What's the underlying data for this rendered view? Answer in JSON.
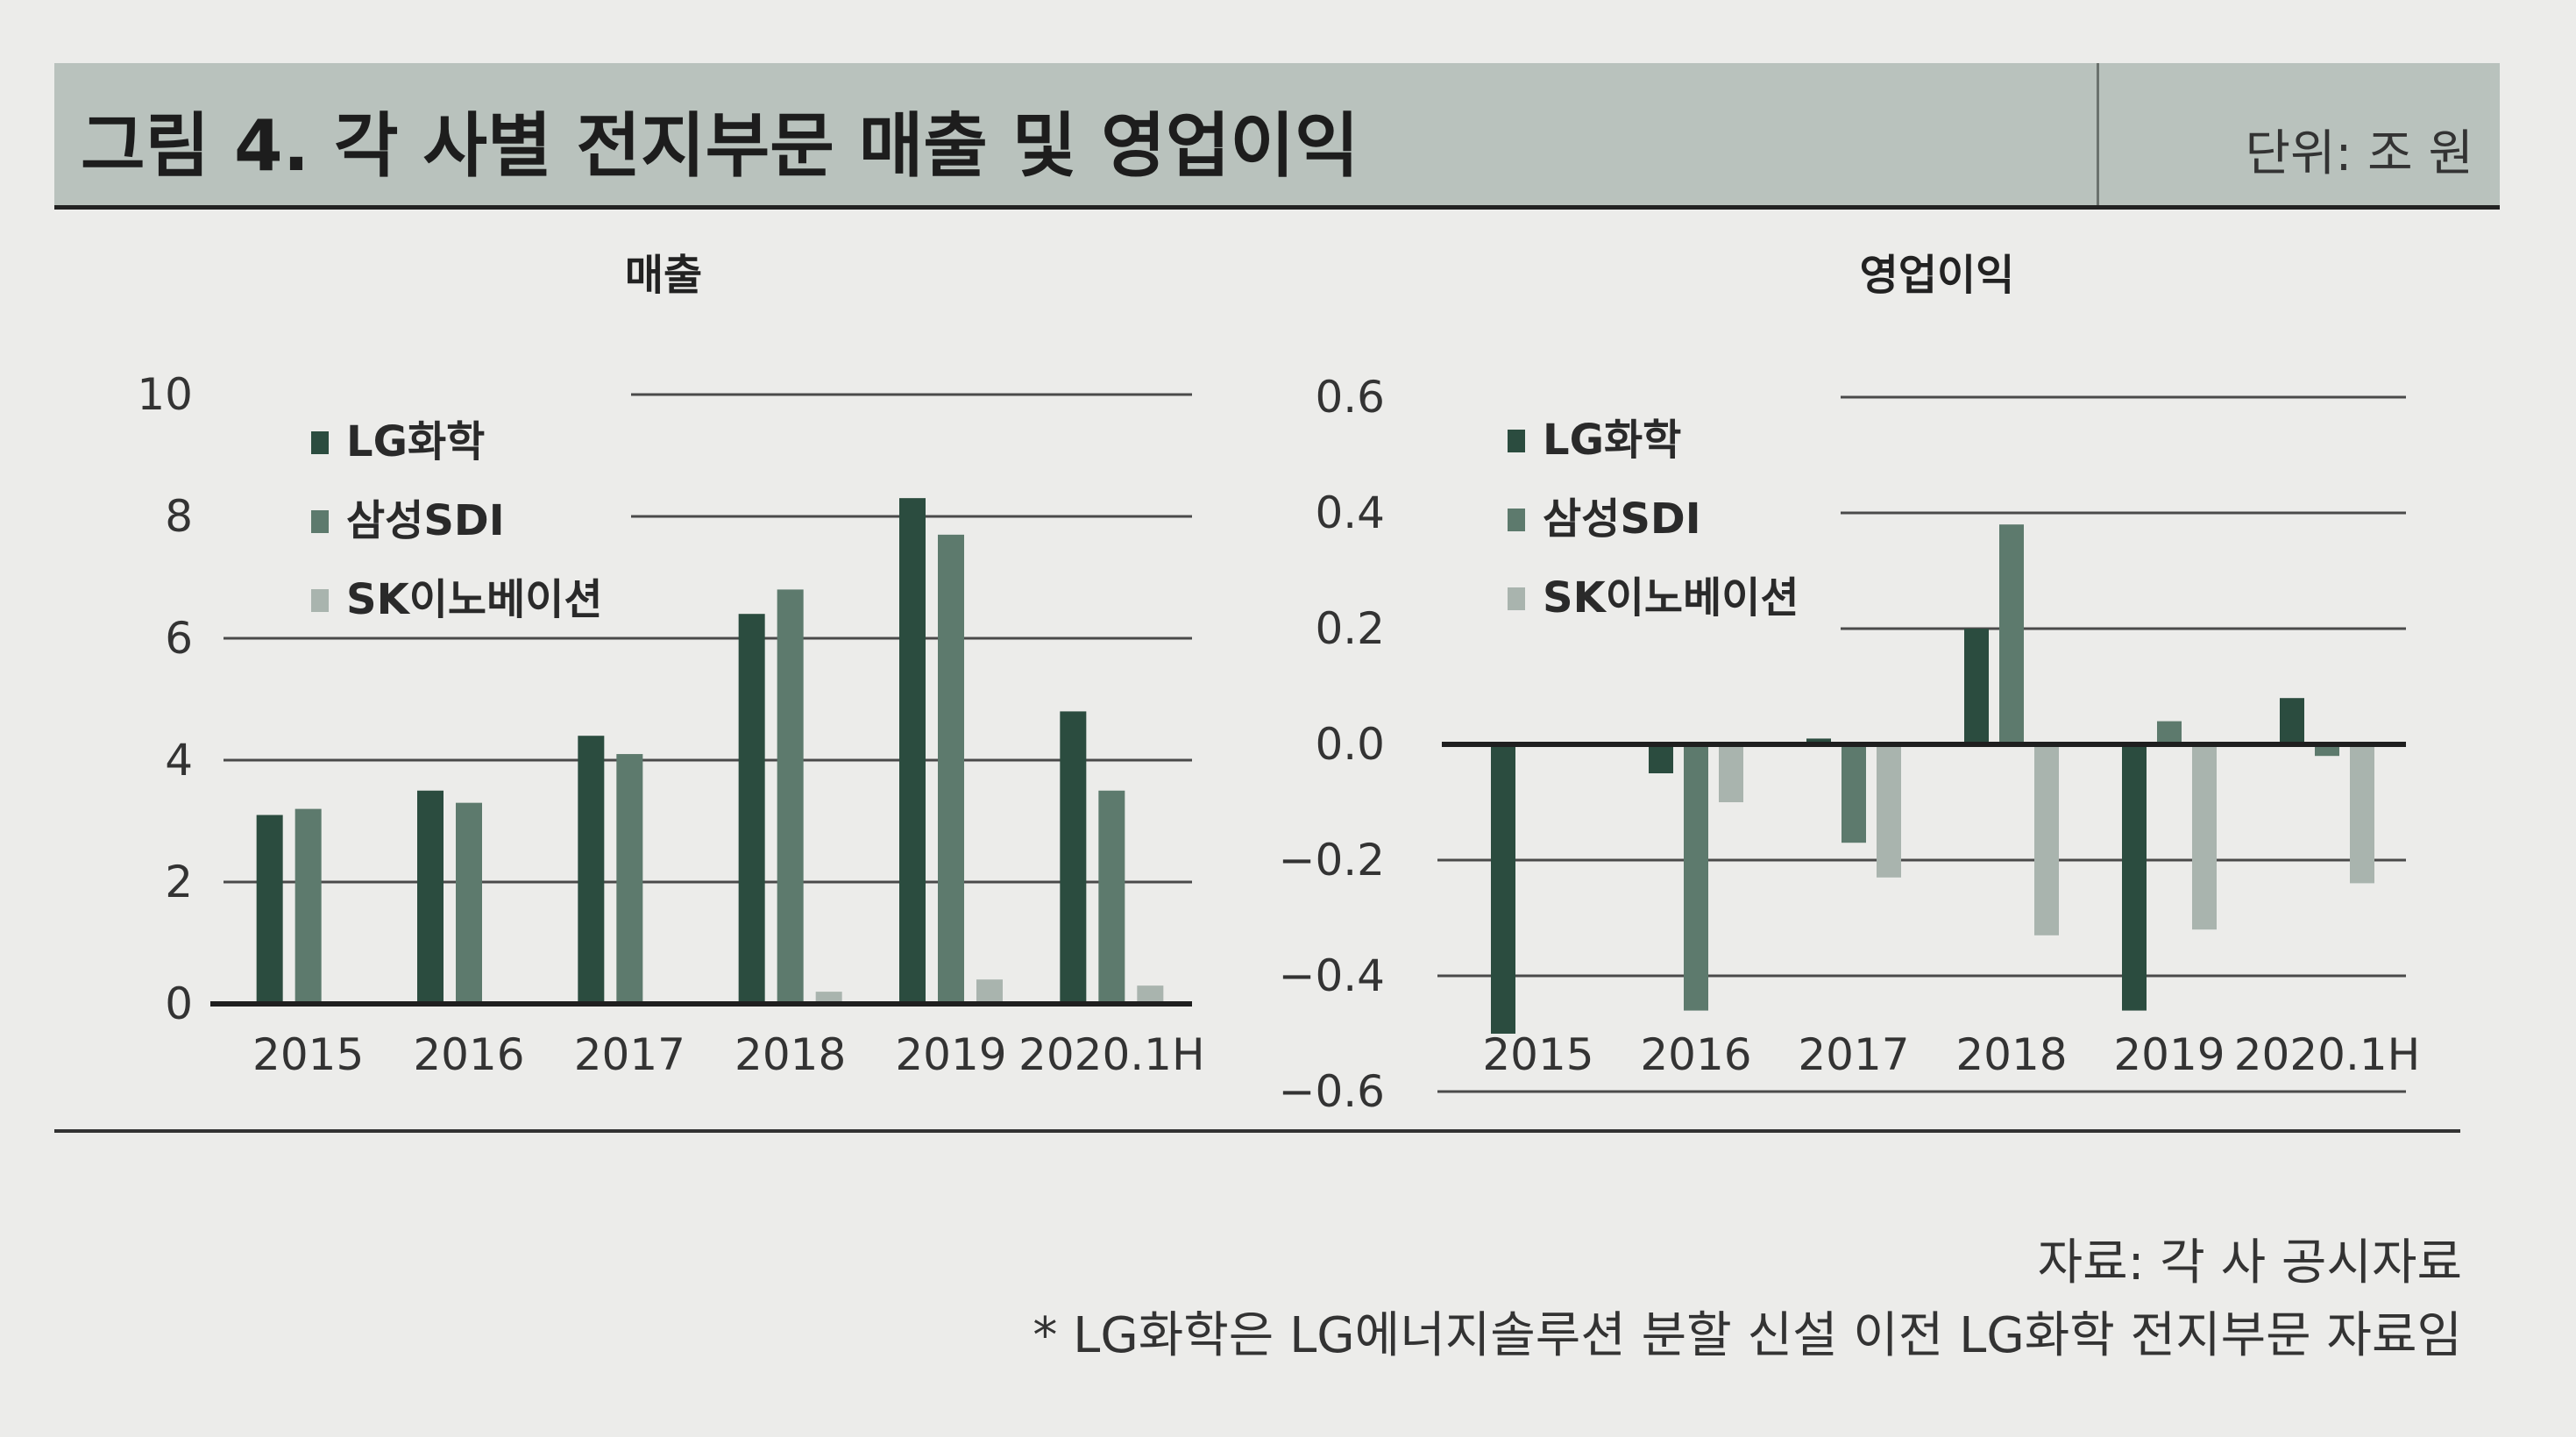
{
  "header": {
    "title": "그림 4. 각 사별 전지부문 매출 및 영업이익",
    "unit": "단위: 조 원"
  },
  "footer": {
    "source": "자료: 각 사 공시자료",
    "note": "* LG화학은 LG에너지솔루션 분할 신설 이전 LG화학 전지부문 자료임"
  },
  "colors": {
    "lg": "#2b4c3f",
    "samsung": "#5d7a6d",
    "sk": "#a9b4ae",
    "grid": "#4a4a4a"
  },
  "chart_data": [
    {
      "type": "bar",
      "title": "매출",
      "categories": [
        "2015",
        "2016",
        "2017",
        "2018",
        "2019",
        "2020.1H"
      ],
      "ylim": [
        0,
        10
      ],
      "yticks": [
        "0",
        "2",
        "4",
        "6",
        "8",
        "10"
      ],
      "grid": true,
      "legend_position": "top-left",
      "series": [
        {
          "name": "LG화학",
          "values": [
            3.1,
            3.5,
            4.4,
            6.4,
            8.3,
            4.8
          ]
        },
        {
          "name": "삼성SDI",
          "values": [
            3.2,
            3.3,
            4.1,
            6.8,
            7.7,
            3.5
          ]
        },
        {
          "name": "SK이노베이션",
          "values": [
            0,
            0,
            0,
            0.2,
            0.4,
            0.3
          ]
        }
      ]
    },
    {
      "type": "bar",
      "title": "영업이익",
      "categories": [
        "2015",
        "2016",
        "2017",
        "2018",
        "2019",
        "2020.1H"
      ],
      "ylim": [
        -0.6,
        0.6
      ],
      "yticks": [
        "−0.6",
        "−0.4",
        "−0.2",
        "0.0",
        "0.2",
        "0.4",
        "0.6"
      ],
      "grid": true,
      "legend_position": "top-left",
      "series": [
        {
          "name": "LG화학",
          "values": [
            -0.5,
            -0.05,
            0.01,
            0.2,
            -0.46,
            0.08
          ]
        },
        {
          "name": "삼성SDI",
          "values": [
            0,
            -0.46,
            -0.17,
            0.38,
            0.04,
            -0.02
          ]
        },
        {
          "name": "SK이노베이션",
          "values": [
            0,
            -0.1,
            -0.23,
            -0.33,
            -0.32,
            -0.24
          ]
        }
      ]
    }
  ]
}
